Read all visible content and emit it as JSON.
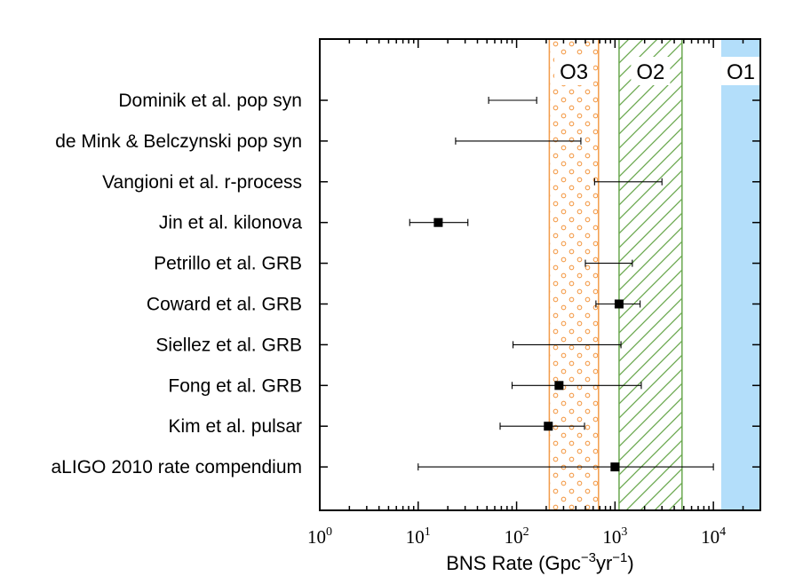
{
  "chart_data": {
    "type": "scatter",
    "title": "",
    "xlabel": "BNS Rate (Gpc⁻³yr⁻¹)",
    "xlabel_main": "BNS Rate (Gpc",
    "xlabel_exp1": "−3",
    "xlabel_mid": "yr",
    "xlabel_exp2": "−1",
    "xlabel_end": ")",
    "x_scale": "log",
    "xlim": [
      1,
      30000
    ],
    "x_ticks": [
      {
        "base": "10",
        "exp": "0",
        "value": 1
      },
      {
        "base": "10",
        "exp": "1",
        "value": 10
      },
      {
        "base": "10",
        "exp": "2",
        "value": 100
      },
      {
        "base": "10",
        "exp": "3",
        "value": 1000
      },
      {
        "base": "10",
        "exp": "4",
        "value": 10000
      }
    ],
    "grid": false,
    "bands": [
      {
        "name": "O3",
        "label": "O3",
        "low": 215,
        "high": 680,
        "style": "dots",
        "color": "#f39c4a"
      },
      {
        "name": "O2",
        "label": "O2",
        "low": 1100,
        "high": 4800,
        "style": "hatch",
        "color": "#6aa84f"
      },
      {
        "name": "O1",
        "label": "O1",
        "low": 12000,
        "high": 30000,
        "style": "solid",
        "color": "#b3defa"
      }
    ],
    "estimates": [
      {
        "label": "Dominik et al. pop syn",
        "low": 52,
        "high": 160,
        "central": null
      },
      {
        "label": "de Mink & Belczynski pop syn",
        "low": 24,
        "high": 450,
        "central": null
      },
      {
        "label": "Vangioni et al. r-process",
        "low": 620,
        "high": 3000,
        "central": null
      },
      {
        "label": "Jin et al. kilonova",
        "low": 8.2,
        "high": 32,
        "central": 16
      },
      {
        "label": "Petrillo et al. GRB",
        "low": 500,
        "high": 1500,
        "central": null
      },
      {
        "label": "Coward et al. GRB",
        "low": 640,
        "high": 1800,
        "central": 1100
      },
      {
        "label": "Siellez et al. GRB",
        "low": 92,
        "high": 1150,
        "central": null
      },
      {
        "label": "Fong et al. GRB",
        "low": 90,
        "high": 1850,
        "central": 270
      },
      {
        "label": "Kim et al. pulsar",
        "low": 68,
        "high": 490,
        "central": 210
      },
      {
        "label": "aLIGO 2010 rate compendium",
        "low": 10,
        "high": 10000,
        "central": 1000
      }
    ]
  }
}
